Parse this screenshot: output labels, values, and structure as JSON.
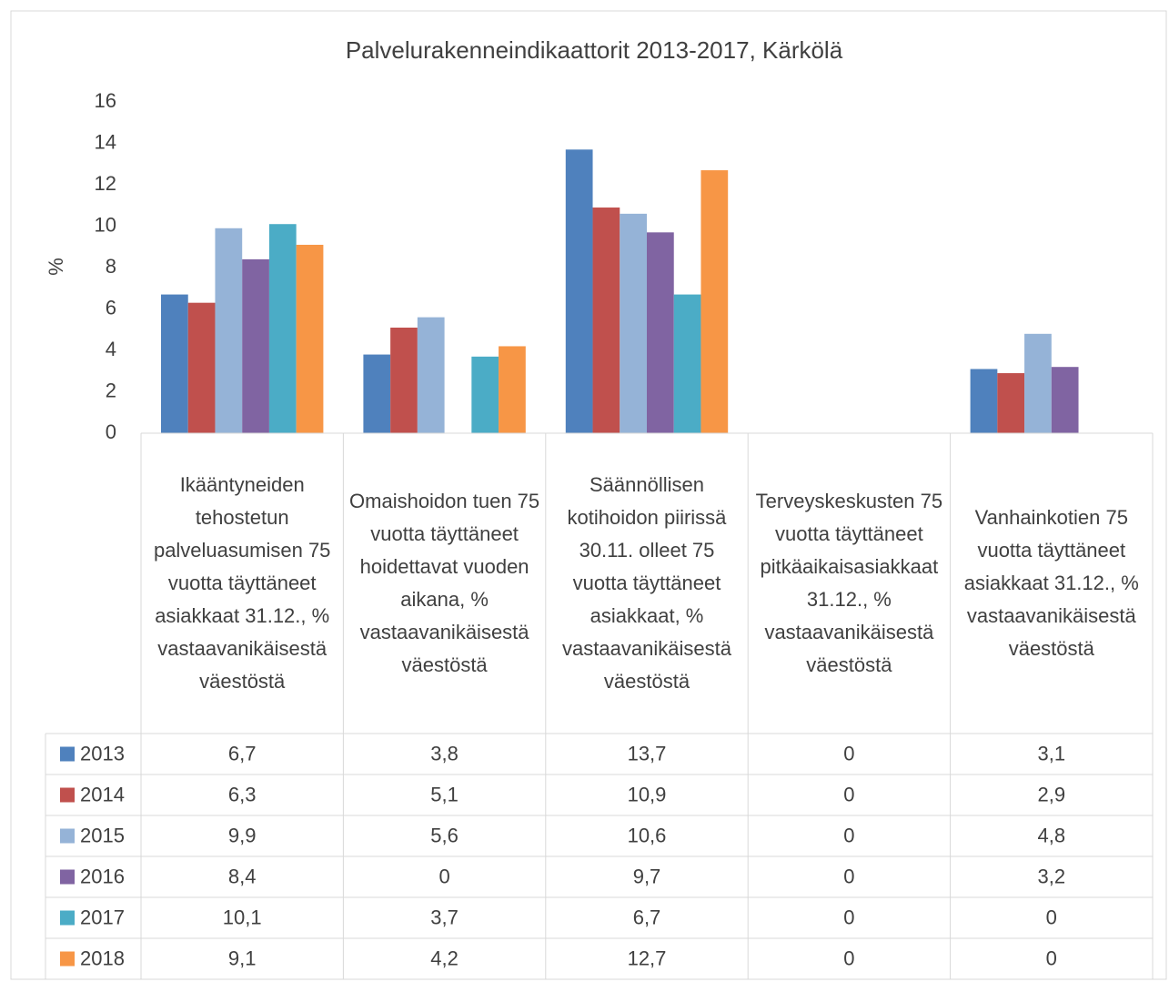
{
  "chart_data": {
    "type": "bar",
    "title": "Palvelurakenneindikaattorit 2013-2017, Kärkölä",
    "y_label": "%",
    "categories": [
      "Ikääntyneiden tehostetun palveluasumisen 75 vuotta täyttäneet asiakkaat 31.12., % vastaavanikäisestä väestöstä",
      "Omaishoidon tuen 75 vuotta täyttäneet hoidettavat vuoden aikana, % vastaavanikäisestä väestöstä",
      "Säännöllisen kotihoidon piirissä 30.11. olleet 75 vuotta täyttäneet asiakkaat, % vastaavanikäisestä väestöstä",
      "Terveyskeskusten 75 vuotta täyttäneet pitkäaikaisasiakkaat 31.12., % vastaavanikäisestä väestöstä",
      "Vanhainkotien 75 vuotta täyttäneet asiakkaat 31.12., % vastaavanikäisestä väestöstä"
    ],
    "series": [
      {
        "name": "2013",
        "color": "#4f81bd",
        "values": [
          6.7,
          3.8,
          13.7,
          0,
          3.1
        ],
        "value_labels": [
          "6,7",
          "3,8",
          "13,7",
          "0",
          "3,1"
        ]
      },
      {
        "name": "2014",
        "color": "#c0504d",
        "values": [
          6.3,
          5.1,
          10.9,
          0,
          2.9
        ],
        "value_labels": [
          "6,3",
          "5,1",
          "10,9",
          "0",
          "2,9"
        ]
      },
      {
        "name": "2015",
        "color": "#95b3d7",
        "values": [
          9.9,
          5.6,
          10.6,
          0,
          4.8
        ],
        "value_labels": [
          "9,9",
          "5,6",
          "10,6",
          "0",
          "4,8"
        ]
      },
      {
        "name": "2016",
        "color": "#8064a2",
        "values": [
          8.4,
          0,
          9.7,
          0,
          3.2
        ],
        "value_labels": [
          "8,4",
          "0",
          "9,7",
          "0",
          "3,2"
        ]
      },
      {
        "name": "2017",
        "color": "#4bacc6",
        "values": [
          10.1,
          3.7,
          6.7,
          0,
          0
        ],
        "value_labels": [
          "10,1",
          "3,7",
          "6,7",
          "0",
          "0"
        ]
      },
      {
        "name": "2018",
        "color": "#f79646",
        "values": [
          9.1,
          4.2,
          12.7,
          0,
          0
        ],
        "value_labels": [
          "9,1",
          "4,2",
          "12,7",
          "0",
          "0"
        ]
      }
    ],
    "ylim": [
      0,
      16
    ],
    "yticks": [
      0,
      2,
      4,
      6,
      8,
      10,
      12,
      14,
      16
    ],
    "grid": false
  }
}
